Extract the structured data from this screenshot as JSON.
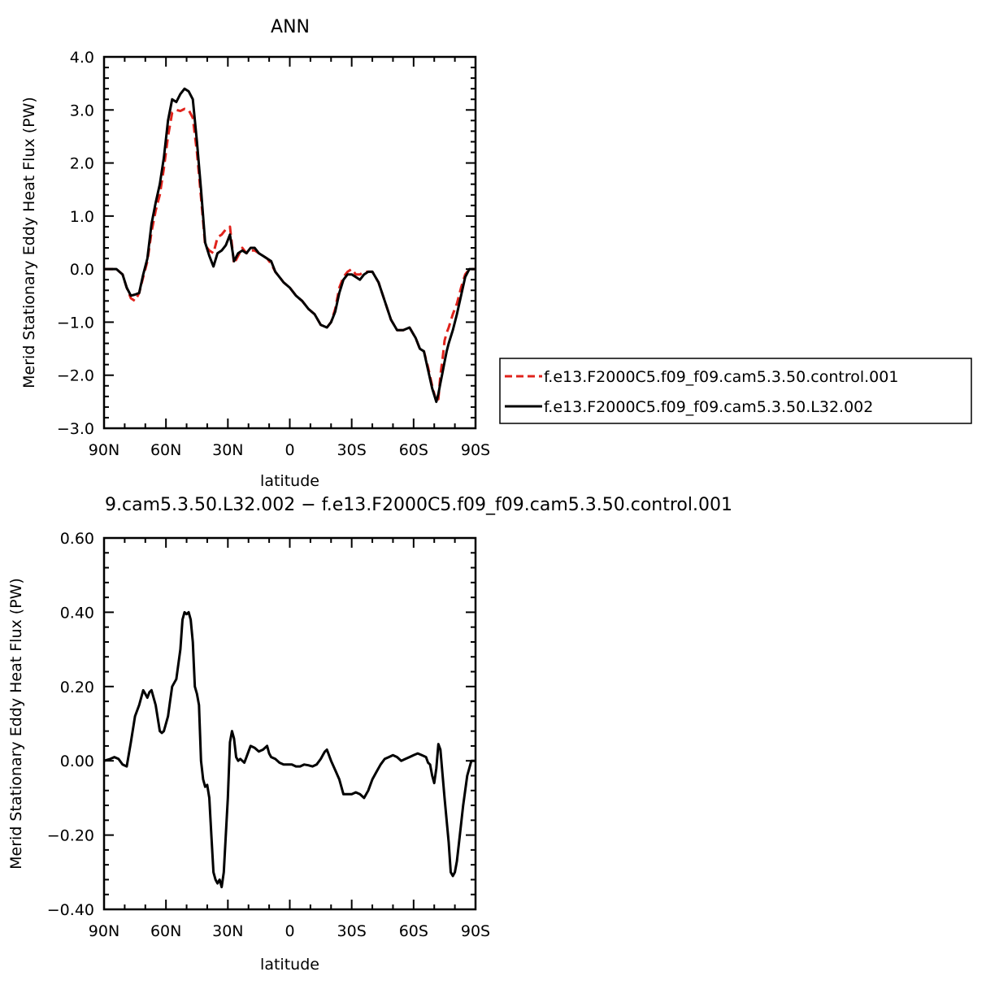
{
  "chart_data": [
    {
      "type": "line",
      "title": "ANN",
      "xlabel": "latitude",
      "ylabel": "Merid Stationary Eddy Heat Flux (PW)",
      "xlim": [
        90,
        -90
      ],
      "ylim": [
        -3.0,
        4.0
      ],
      "x_ticks": [
        90,
        60,
        30,
        0,
        -30,
        -60,
        -90
      ],
      "x_tick_labels": [
        "90N",
        "60N",
        "30N",
        "0",
        "30S",
        "60S",
        "90S"
      ],
      "y_ticks": [
        -3.0,
        -2.0,
        -1.0,
        0.0,
        1.0,
        2.0,
        3.0,
        4.0
      ],
      "y_tick_labels": [
        "−3.0",
        "−2.0",
        "−1.0",
        "0.0",
        "1.0",
        "2.0",
        "3.0",
        "4.0"
      ],
      "grid": false,
      "legend_position": "right",
      "series": [
        {
          "name": "f.e13.F2000C5.f09_f09.cam5.3.50.control.001",
          "color": "#e0231c",
          "dash": "dashed",
          "x": [
            90,
            84,
            81,
            79,
            77,
            75,
            73,
            71,
            69,
            67,
            65,
            63,
            61,
            59,
            57,
            55,
            53,
            51,
            49,
            47,
            45,
            43,
            41,
            39,
            37,
            35,
            33,
            31,
            29,
            27,
            25,
            23,
            21,
            19,
            17,
            15,
            13,
            11,
            9,
            7,
            5,
            3,
            0,
            -3,
            -6,
            -9,
            -12,
            -15,
            -18,
            -20,
            -22,
            -24,
            -26,
            -28,
            -30,
            -32,
            -34,
            -36,
            -38,
            -40,
            -43,
            -46,
            -49,
            -52,
            -55,
            -58,
            -61,
            -63,
            -65,
            -67,
            -69,
            -71,
            -72,
            -73,
            -74,
            -75,
            -76,
            -77,
            -79,
            -81,
            -83,
            -85,
            -87,
            -90
          ],
          "y": [
            0.0,
            0.0,
            -0.1,
            -0.35,
            -0.55,
            -0.6,
            -0.45,
            -0.15,
            0.15,
            0.7,
            1.1,
            1.4,
            1.9,
            2.5,
            2.95,
            3.0,
            2.98,
            3.02,
            3.0,
            2.85,
            2.2,
            1.35,
            0.45,
            0.35,
            0.3,
            0.6,
            0.65,
            0.75,
            0.8,
            0.1,
            0.25,
            0.4,
            0.3,
            0.35,
            0.35,
            0.3,
            0.25,
            0.2,
            0.1,
            -0.05,
            -0.15,
            -0.25,
            -0.35,
            -0.5,
            -0.6,
            -0.75,
            -0.85,
            -1.05,
            -1.1,
            -1.0,
            -0.75,
            -0.35,
            -0.15,
            -0.05,
            0.0,
            -0.1,
            -0.1,
            -0.05,
            -0.05,
            -0.05,
            -0.25,
            -0.6,
            -0.95,
            -1.15,
            -1.15,
            -1.1,
            -1.3,
            -1.5,
            -1.55,
            -1.85,
            -2.2,
            -2.5,
            -2.45,
            -2.0,
            -1.7,
            -1.35,
            -1.2,
            -1.1,
            -0.85,
            -0.65,
            -0.35,
            -0.1,
            0.0,
            0.0
          ]
        },
        {
          "name": "f.e13.F2000C5.f09_f09.cam5.3.50.L32.002",
          "color": "#000000",
          "dash": "solid",
          "x": [
            90,
            84,
            81,
            79,
            77,
            75,
            73,
            71,
            69,
            67,
            65,
            63,
            61,
            59,
            57,
            55,
            53,
            51,
            49,
            47,
            45,
            43,
            41,
            39,
            37,
            35,
            33,
            31,
            29,
            27,
            25,
            23,
            21,
            19,
            17,
            15,
            13,
            11,
            9,
            7,
            5,
            3,
            0,
            -3,
            -6,
            -9,
            -12,
            -15,
            -18,
            -20,
            -22,
            -24,
            -26,
            -28,
            -30,
            -32,
            -34,
            -36,
            -38,
            -40,
            -43,
            -46,
            -49,
            -52,
            -55,
            -58,
            -61,
            -63,
            -65,
            -67,
            -69,
            -71,
            -72,
            -73,
            -74,
            -75,
            -76,
            -77,
            -79,
            -81,
            -83,
            -85,
            -87,
            -90
          ],
          "y": [
            0.0,
            0.0,
            -0.1,
            -0.35,
            -0.5,
            -0.48,
            -0.45,
            -0.1,
            0.2,
            0.85,
            1.25,
            1.6,
            2.1,
            2.8,
            3.2,
            3.15,
            3.3,
            3.4,
            3.35,
            3.2,
            2.4,
            1.5,
            0.5,
            0.25,
            0.05,
            0.3,
            0.35,
            0.45,
            0.65,
            0.15,
            0.3,
            0.35,
            0.3,
            0.4,
            0.4,
            0.3,
            0.25,
            0.2,
            0.15,
            -0.05,
            -0.15,
            -0.25,
            -0.35,
            -0.5,
            -0.6,
            -0.75,
            -0.85,
            -1.05,
            -1.1,
            -1.0,
            -0.8,
            -0.45,
            -0.2,
            -0.1,
            -0.1,
            -0.15,
            -0.2,
            -0.1,
            -0.05,
            -0.05,
            -0.25,
            -0.6,
            -0.95,
            -1.15,
            -1.15,
            -1.1,
            -1.3,
            -1.5,
            -1.55,
            -1.9,
            -2.25,
            -2.5,
            -2.35,
            -2.15,
            -1.95,
            -1.75,
            -1.55,
            -1.4,
            -1.15,
            -0.85,
            -0.5,
            -0.15,
            0.0,
            0.0
          ]
        }
      ]
    },
    {
      "type": "line",
      "title": "9.cam5.3.50.L32.002 − f.e13.F2000C5.f09_f09.cam5.3.50.control.001",
      "xlabel": "latitude",
      "ylabel": "Merid Stationary Eddy Heat Flux (PW)",
      "xlim": [
        90,
        -90
      ],
      "ylim": [
        -0.4,
        0.6
      ],
      "x_ticks": [
        90,
        60,
        30,
        0,
        -30,
        -60,
        -90
      ],
      "x_tick_labels": [
        "90N",
        "60N",
        "30N",
        "0",
        "30S",
        "60S",
        "90S"
      ],
      "y_ticks": [
        -0.4,
        -0.2,
        0.0,
        0.2,
        0.4,
        0.6
      ],
      "y_tick_labels": [
        "−0.40",
        "−0.20",
        "0.00",
        "0.20",
        "0.40",
        "0.60"
      ],
      "grid": false,
      "series": [
        {
          "color": "#000000",
          "dash": "solid",
          "x": [
            90,
            87,
            85,
            83,
            81,
            79,
            77,
            75,
            73,
            71,
            70,
            69,
            68,
            67,
            65,
            63,
            62,
            61,
            59,
            58,
            57,
            55,
            53,
            52,
            51,
            50,
            49,
            48,
            47,
            46,
            45,
            44,
            43,
            42,
            41,
            40,
            39,
            38,
            37,
            36,
            35,
            34,
            33,
            32,
            31,
            30,
            29,
            28,
            27,
            26,
            25,
            24,
            23,
            22,
            21,
            20,
            19,
            17,
            15,
            13,
            11,
            10,
            9,
            7,
            5,
            3,
            1,
            -1,
            -3,
            -5,
            -7,
            -9,
            -11,
            -13,
            -15,
            -16,
            -17,
            -18,
            -20,
            -22,
            -24,
            -26,
            -28,
            -30,
            -32,
            -34,
            -36,
            -38,
            -40,
            -42,
            -44,
            -46,
            -48,
            -50,
            -52,
            -54,
            -56,
            -58,
            -60,
            -62,
            -64,
            -66,
            -67,
            -68,
            -69,
            -70,
            -71,
            -72,
            -73,
            -75,
            -77,
            -78,
            -79,
            -80,
            -81,
            -82,
            -84,
            -86,
            -88,
            -90
          ],
          "y": [
            0.0,
            0.005,
            0.01,
            0.005,
            -0.01,
            -0.015,
            0.05,
            0.12,
            0.15,
            0.19,
            0.18,
            0.17,
            0.185,
            0.19,
            0.15,
            0.08,
            0.075,
            0.08,
            0.12,
            0.16,
            0.2,
            0.22,
            0.3,
            0.38,
            0.4,
            0.395,
            0.4,
            0.38,
            0.32,
            0.2,
            0.18,
            0.15,
            0.0,
            -0.05,
            -0.07,
            -0.065,
            -0.1,
            -0.2,
            -0.3,
            -0.32,
            -0.33,
            -0.32,
            -0.34,
            -0.3,
            -0.2,
            -0.1,
            0.05,
            0.08,
            0.06,
            0.01,
            0.0,
            0.005,
            0.0,
            -0.005,
            0.01,
            0.025,
            0.04,
            0.035,
            0.025,
            0.03,
            0.04,
            0.02,
            0.01,
            0.005,
            -0.005,
            -0.01,
            -0.01,
            -0.01,
            -0.015,
            -0.015,
            -0.01,
            -0.012,
            -0.015,
            -0.01,
            0.005,
            0.015,
            0.025,
            0.03,
            0.0,
            -0.025,
            -0.05,
            -0.09,
            -0.09,
            -0.09,
            -0.085,
            -0.09,
            -0.1,
            -0.08,
            -0.05,
            -0.03,
            -0.01,
            0.005,
            0.01,
            0.015,
            0.01,
            0.0,
            0.005,
            0.01,
            0.015,
            0.02,
            0.015,
            0.01,
            -0.005,
            -0.01,
            -0.04,
            -0.06,
            -0.02,
            0.045,
            0.03,
            -0.1,
            -0.22,
            -0.3,
            -0.31,
            -0.3,
            -0.27,
            -0.22,
            -0.12,
            -0.04,
            0.0,
            0.0
          ]
        }
      ]
    }
  ]
}
